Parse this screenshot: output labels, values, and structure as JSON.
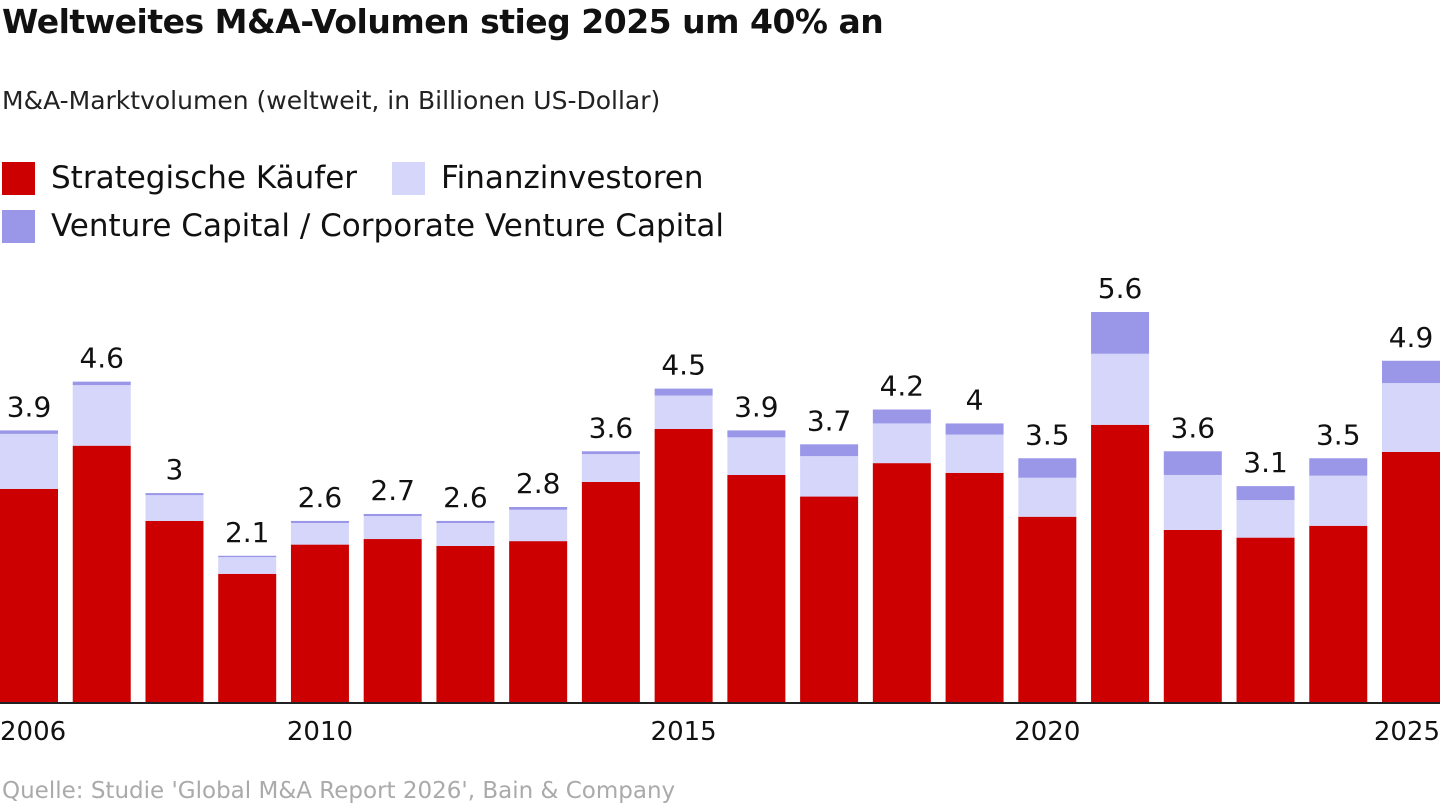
{
  "title": "Weltweites M&A-Volumen stieg 2025 um 40% an",
  "subtitle": "M&A-Marktvolumen (weltweit, in Billionen US-Dollar)",
  "source": "Quelle: Studie 'Global M&A Report 2026', Bain & Company",
  "chart_data": {
    "type": "bar",
    "stacked": true,
    "title": "Weltweites M&A-Volumen stieg 2025 um 40% an",
    "subtitle": "M&A-Marktvolumen (weltweit, in Billionen US-Dollar)",
    "xlabel": "",
    "ylabel": "",
    "ylim": [
      0,
      5.6
    ],
    "grid": false,
    "legend_position": "top-left",
    "categories": [
      "2006",
      "2007",
      "2008",
      "2009",
      "2010",
      "2011",
      "2012",
      "2013",
      "2014",
      "2015",
      "2016",
      "2017",
      "2018",
      "2019",
      "2020",
      "2021",
      "2022",
      "2023",
      "2024",
      "2025"
    ],
    "x_tick_labels": [
      "2006",
      "2010",
      "2015",
      "2020",
      "2025"
    ],
    "series": [
      {
        "name": "Strategische Käufer",
        "color": "#cc0000",
        "values": [
          3.06,
          3.68,
          2.6,
          1.84,
          2.26,
          2.34,
          2.24,
          2.31,
          3.16,
          3.92,
          3.26,
          2.95,
          3.43,
          3.29,
          2.66,
          3.98,
          2.47,
          2.36,
          2.53,
          3.59
        ]
      },
      {
        "name": "Finanzinvestoren",
        "color": "#d6d6fa",
        "values": [
          0.79,
          0.87,
          0.37,
          0.24,
          0.31,
          0.33,
          0.33,
          0.45,
          0.4,
          0.48,
          0.54,
          0.58,
          0.57,
          0.55,
          0.56,
          1.02,
          0.79,
          0.54,
          0.72,
          0.99
        ]
      },
      {
        "name": "Venture Capital / Corporate Venture Capital",
        "color": "#9b97e8",
        "values": [
          0.05,
          0.05,
          0.03,
          0.02,
          0.03,
          0.03,
          0.03,
          0.04,
          0.04,
          0.1,
          0.1,
          0.17,
          0.2,
          0.16,
          0.28,
          0.6,
          0.34,
          0.2,
          0.25,
          0.32
        ]
      }
    ],
    "totals": [
      "3.9",
      "4.6",
      "3",
      "2.1",
      "2.6",
      "2.7",
      "2.6",
      "2.8",
      "3.6",
      "4.5",
      "3.9",
      "3.7",
      "4.2",
      "4",
      "3.5",
      "5.6",
      "3.6",
      "3.1",
      "3.5",
      "4.9"
    ]
  }
}
